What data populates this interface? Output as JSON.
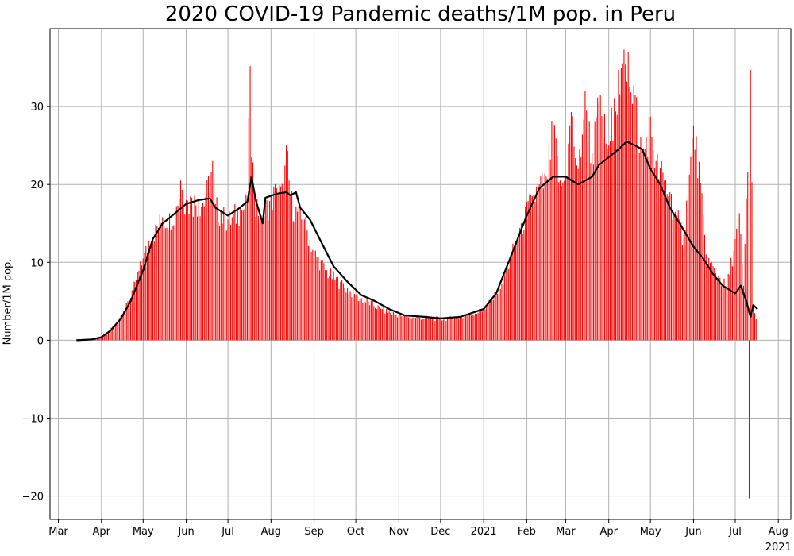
{
  "chart_data": {
    "type": "bar",
    "title": "2020 COVID-19 Pandemic deaths/1M pop. in Peru",
    "xlabel": "",
    "ylabel": "Number/1M pop.",
    "ylim": [
      -23,
      40
    ],
    "yticks": [
      -20,
      -10,
      0,
      10,
      20,
      30
    ],
    "ytick_labels": [
      "−20",
      "−10",
      "0",
      "10",
      "20",
      "30"
    ],
    "xlim": [
      "2020-02-24",
      "2021-08-10"
    ],
    "xticks": [
      "2020-03-01",
      "2020-04-01",
      "2020-05-01",
      "2020-06-01",
      "2020-07-01",
      "2020-08-01",
      "2020-09-01",
      "2020-10-01",
      "2020-11-01",
      "2020-12-01",
      "2021-01-01",
      "2021-02-01",
      "2021-03-01",
      "2021-04-01",
      "2021-05-01",
      "2021-06-01",
      "2021-07-01",
      "2021-08-01"
    ],
    "xtick_labels": [
      "Mar",
      "Apr",
      "May",
      "Jun",
      "Jul",
      "Aug",
      "Sep",
      "Oct",
      "Nov",
      "Dec",
      "2021",
      "Feb",
      "Mar",
      "Apr",
      "May",
      "Jun",
      "Jul",
      "Aug"
    ],
    "xtick_sublabels": {
      "17": "2021"
    },
    "grid": true,
    "bar_color": "#ff0000",
    "line_color": "#000000",
    "series": [
      {
        "type": "bar",
        "points": [
          {
            "x": "2020-03-19",
            "y": 0.03
          },
          {
            "x": "2020-03-26",
            "y": 0.1
          },
          {
            "x": "2020-04-01",
            "y": 0.3
          },
          {
            "x": "2020-04-05",
            "y": 0.9
          },
          {
            "x": "2020-04-10",
            "y": 2.0
          },
          {
            "x": "2020-04-15",
            "y": 3.2
          },
          {
            "x": "2020-04-20",
            "y": 5.0
          },
          {
            "x": "2020-04-25",
            "y": 7.5
          },
          {
            "x": "2020-05-01",
            "y": 10.5
          },
          {
            "x": "2020-05-05",
            "y": 12.8
          },
          {
            "x": "2020-05-10",
            "y": 14.8
          },
          {
            "x": "2020-05-15",
            "y": 15.8
          },
          {
            "x": "2020-05-20",
            "y": 16.3
          },
          {
            "x": "2020-05-25",
            "y": 17.2
          },
          {
            "x": "2020-05-28",
            "y": 20.5
          },
          {
            "x": "2020-06-01",
            "y": 18.0
          },
          {
            "x": "2020-06-05",
            "y": 18.3
          },
          {
            "x": "2020-06-10",
            "y": 18.0
          },
          {
            "x": "2020-06-15",
            "y": 18.4
          },
          {
            "x": "2020-06-20",
            "y": 23.0
          },
          {
            "x": "2020-06-22",
            "y": 17.5
          },
          {
            "x": "2020-06-26",
            "y": 16.5
          },
          {
            "x": "2020-07-01",
            "y": 15.5
          },
          {
            "x": "2020-07-05",
            "y": 16.2
          },
          {
            "x": "2020-07-10",
            "y": 17.0
          },
          {
            "x": "2020-07-15",
            "y": 17.8
          },
          {
            "x": "2020-07-17",
            "y": 35.2
          },
          {
            "x": "2020-07-18",
            "y": 23.5
          },
          {
            "x": "2020-07-20",
            "y": 19.0
          },
          {
            "x": "2020-07-25",
            "y": 16.0
          },
          {
            "x": "2020-08-01",
            "y": 18.5
          },
          {
            "x": "2020-08-05",
            "y": 19.5
          },
          {
            "x": "2020-08-10",
            "y": 19.0
          },
          {
            "x": "2020-08-12",
            "y": 25.0
          },
          {
            "x": "2020-08-15",
            "y": 18.5
          },
          {
            "x": "2020-08-20",
            "y": 16.5
          },
          {
            "x": "2020-08-25",
            "y": 15.5
          },
          {
            "x": "2020-09-01",
            "y": 11.5
          },
          {
            "x": "2020-09-10",
            "y": 9.0
          },
          {
            "x": "2020-09-20",
            "y": 7.5
          },
          {
            "x": "2020-10-01",
            "y": 5.8
          },
          {
            "x": "2020-10-10",
            "y": 5.0
          },
          {
            "x": "2020-10-20",
            "y": 4.0
          },
          {
            "x": "2020-11-01",
            "y": 3.3
          },
          {
            "x": "2020-11-15",
            "y": 3.0
          },
          {
            "x": "2020-12-01",
            "y": 2.8
          },
          {
            "x": "2020-12-15",
            "y": 3.0
          },
          {
            "x": "2021-01-01",
            "y": 4.0
          },
          {
            "x": "2021-01-10",
            "y": 6.0
          },
          {
            "x": "2021-01-20",
            "y": 10.5
          },
          {
            "x": "2021-01-28",
            "y": 15.0
          },
          {
            "x": "2021-02-05",
            "y": 18.5
          },
          {
            "x": "2021-02-10",
            "y": 20.0
          },
          {
            "x": "2021-02-15",
            "y": 21.0
          },
          {
            "x": "2021-02-20",
            "y": 27.5
          },
          {
            "x": "2021-02-25",
            "y": 20.5
          },
          {
            "x": "2021-03-01",
            "y": 21.0
          },
          {
            "x": "2021-03-05",
            "y": 29.3
          },
          {
            "x": "2021-03-10",
            "y": 22.0
          },
          {
            "x": "2021-03-15",
            "y": 32.0
          },
          {
            "x": "2021-03-20",
            "y": 24.0
          },
          {
            "x": "2021-03-25",
            "y": 30.5
          },
          {
            "x": "2021-04-01",
            "y": 25.0
          },
          {
            "x": "2021-04-05",
            "y": 31.0
          },
          {
            "x": "2021-04-10",
            "y": 35.0
          },
          {
            "x": "2021-04-15",
            "y": 37.0
          },
          {
            "x": "2021-04-20",
            "y": 31.5
          },
          {
            "x": "2021-04-25",
            "y": 24.0
          },
          {
            "x": "2021-05-01",
            "y": 28.7
          },
          {
            "x": "2021-05-05",
            "y": 23.0
          },
          {
            "x": "2021-05-10",
            "y": 21.5
          },
          {
            "x": "2021-05-15",
            "y": 19.0
          },
          {
            "x": "2021-05-20",
            "y": 16.0
          },
          {
            "x": "2021-05-25",
            "y": 13.5
          },
          {
            "x": "2021-06-01",
            "y": 27.5
          },
          {
            "x": "2021-06-03",
            "y": 26.2
          },
          {
            "x": "2021-06-10",
            "y": 11.0
          },
          {
            "x": "2021-06-15",
            "y": 9.5
          },
          {
            "x": "2021-06-20",
            "y": 8.0
          },
          {
            "x": "2021-06-25",
            "y": 7.0
          },
          {
            "x": "2021-07-01",
            "y": 13.0
          },
          {
            "x": "2021-07-04",
            "y": 16.3
          },
          {
            "x": "2021-07-07",
            "y": 7.0
          },
          {
            "x": "2021-07-11",
            "y": -20.3
          },
          {
            "x": "2021-07-12",
            "y": 34.7
          },
          {
            "x": "2021-07-14",
            "y": 4.5
          },
          {
            "x": "2021-07-16",
            "y": 2.7
          }
        ]
      },
      {
        "type": "line",
        "points": [
          {
            "x": "2020-03-14",
            "y": 0.0
          },
          {
            "x": "2020-03-25",
            "y": 0.1
          },
          {
            "x": "2020-04-01",
            "y": 0.4
          },
          {
            "x": "2020-04-08",
            "y": 1.3
          },
          {
            "x": "2020-04-15",
            "y": 2.8
          },
          {
            "x": "2020-04-22",
            "y": 5.0
          },
          {
            "x": "2020-05-01",
            "y": 9.0
          },
          {
            "x": "2020-05-08",
            "y": 13.0
          },
          {
            "x": "2020-05-15",
            "y": 15.0
          },
          {
            "x": "2020-05-22",
            "y": 16.0
          },
          {
            "x": "2020-06-01",
            "y": 17.5
          },
          {
            "x": "2020-06-10",
            "y": 18.0
          },
          {
            "x": "2020-06-18",
            "y": 18.2
          },
          {
            "x": "2020-06-22",
            "y": 17.0
          },
          {
            "x": "2020-07-01",
            "y": 16.0
          },
          {
            "x": "2020-07-08",
            "y": 16.8
          },
          {
            "x": "2020-07-15",
            "y": 17.8
          },
          {
            "x": "2020-07-18",
            "y": 21.0
          },
          {
            "x": "2020-07-21",
            "y": 18.0
          },
          {
            "x": "2020-07-26",
            "y": 15.0
          },
          {
            "x": "2020-07-28",
            "y": 18.3
          },
          {
            "x": "2020-08-05",
            "y": 18.8
          },
          {
            "x": "2020-08-12",
            "y": 19.0
          },
          {
            "x": "2020-08-15",
            "y": 18.6
          },
          {
            "x": "2020-08-19",
            "y": 19.0
          },
          {
            "x": "2020-08-22",
            "y": 17.0
          },
          {
            "x": "2020-08-29",
            "y": 15.5
          },
          {
            "x": "2020-09-05",
            "y": 13.0
          },
          {
            "x": "2020-09-15",
            "y": 9.5
          },
          {
            "x": "2020-09-25",
            "y": 7.5
          },
          {
            "x": "2020-10-05",
            "y": 5.8
          },
          {
            "x": "2020-10-15",
            "y": 5.0
          },
          {
            "x": "2020-10-25",
            "y": 4.0
          },
          {
            "x": "2020-11-05",
            "y": 3.2
          },
          {
            "x": "2020-11-20",
            "y": 3.0
          },
          {
            "x": "2020-12-01",
            "y": 2.8
          },
          {
            "x": "2020-12-15",
            "y": 3.0
          },
          {
            "x": "2021-01-01",
            "y": 4.0
          },
          {
            "x": "2021-01-10",
            "y": 6.0
          },
          {
            "x": "2021-01-20",
            "y": 10.5
          },
          {
            "x": "2021-02-01",
            "y": 16.0
          },
          {
            "x": "2021-02-10",
            "y": 19.5
          },
          {
            "x": "2021-02-20",
            "y": 21.0
          },
          {
            "x": "2021-03-01",
            "y": 21.0
          },
          {
            "x": "2021-03-10",
            "y": 20.0
          },
          {
            "x": "2021-03-20",
            "y": 21.0
          },
          {
            "x": "2021-03-25",
            "y": 22.5
          },
          {
            "x": "2021-04-01",
            "y": 23.5
          },
          {
            "x": "2021-04-08",
            "y": 24.5
          },
          {
            "x": "2021-04-14",
            "y": 25.5
          },
          {
            "x": "2021-04-20",
            "y": 25.0
          },
          {
            "x": "2021-04-25",
            "y": 24.5
          },
          {
            "x": "2021-05-01",
            "y": 22.0
          },
          {
            "x": "2021-05-08",
            "y": 20.0
          },
          {
            "x": "2021-05-15",
            "y": 17.0
          },
          {
            "x": "2021-05-22",
            "y": 15.0
          },
          {
            "x": "2021-06-01",
            "y": 12.0
          },
          {
            "x": "2021-06-08",
            "y": 10.5
          },
          {
            "x": "2021-06-15",
            "y": 8.5
          },
          {
            "x": "2021-06-22",
            "y": 7.0
          },
          {
            "x": "2021-07-01",
            "y": 6.0
          },
          {
            "x": "2021-07-05",
            "y": 7.0
          },
          {
            "x": "2021-07-09",
            "y": 5.0
          },
          {
            "x": "2021-07-12",
            "y": 3.0
          },
          {
            "x": "2021-07-14",
            "y": 4.5
          },
          {
            "x": "2021-07-17",
            "y": 4.0
          }
        ]
      }
    ]
  }
}
